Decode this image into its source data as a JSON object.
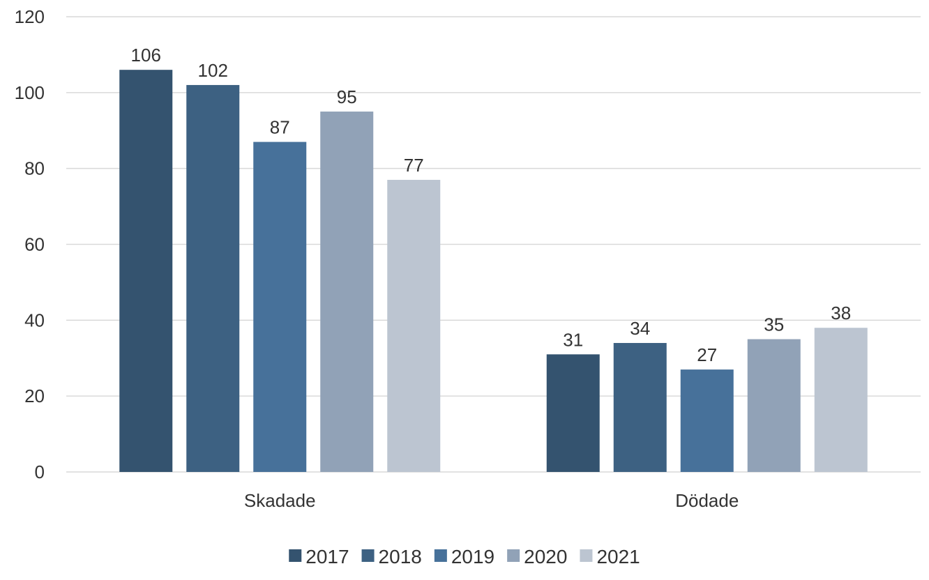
{
  "chart_data": {
    "type": "bar",
    "categories": [
      "Skadade",
      "Dödade"
    ],
    "series": [
      {
        "name": "2017",
        "values": [
          106,
          31
        ],
        "color": "#34536f"
      },
      {
        "name": "2018",
        "values": [
          102,
          34
        ],
        "color": "#3d6182"
      },
      {
        "name": "2019",
        "values": [
          87,
          27
        ],
        "color": "#47719a"
      },
      {
        "name": "2020",
        "values": [
          95,
          35
        ],
        "color": "#91a2b7"
      },
      {
        "name": "2021",
        "values": [
          77,
          38
        ],
        "color": "#bcc5d1"
      }
    ],
    "yticks": [
      0,
      20,
      40,
      60,
      80,
      100,
      120
    ],
    "ylim": [
      0,
      120
    ],
    "grid": true,
    "legend": "bottom-center",
    "title": "",
    "xlabel": "",
    "ylabel": ""
  }
}
